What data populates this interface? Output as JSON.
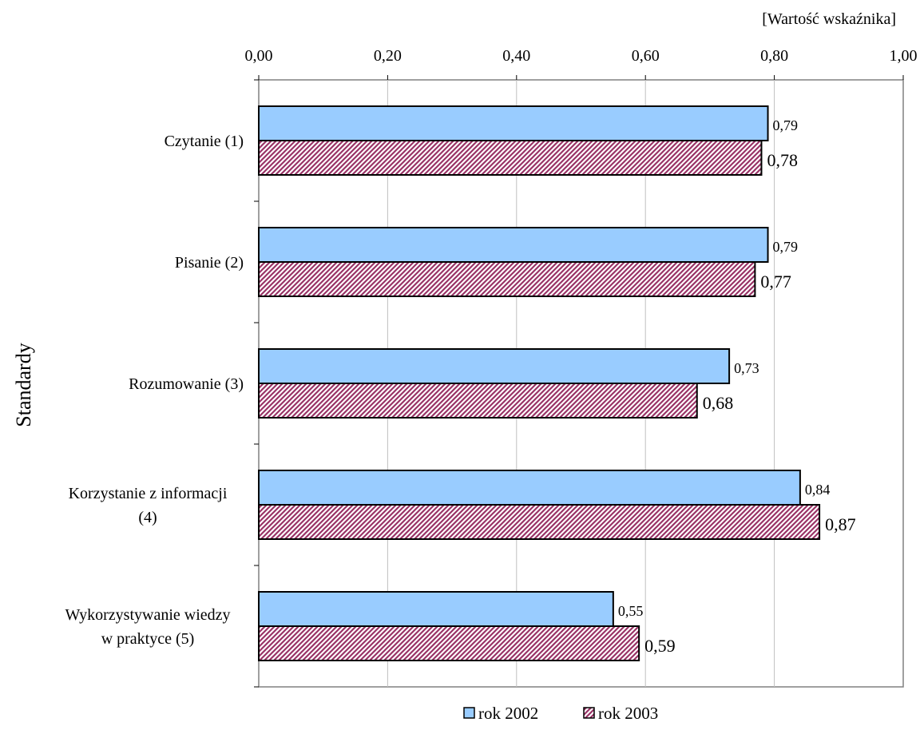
{
  "chart_data": {
    "type": "bar",
    "orientation": "horizontal",
    "axis_unit_label": "[Wartość wskaźnika]",
    "ylabel": "Standardy",
    "xlim": [
      0,
      1
    ],
    "x_ticks": [
      "0,00",
      "0,20",
      "0,40",
      "0,60",
      "0,80",
      "1,00"
    ],
    "x_tick_values": [
      0,
      0.2,
      0.4,
      0.6,
      0.8,
      1.0
    ],
    "x_axis_position": "top",
    "grid": true,
    "legend_position": "bottom",
    "categories": [
      [
        "Czytanie (1)"
      ],
      [
        "Pisanie (2)"
      ],
      [
        "Rozumowanie (3)"
      ],
      [
        "Korzystanie z informacji",
        "(4)"
      ],
      [
        "Wykorzystywanie wiedzy",
        "w praktyce (5)"
      ]
    ],
    "series": [
      {
        "name": "rok 2002",
        "values": [
          0.79,
          0.79,
          0.73,
          0.84,
          0.55
        ],
        "labels": [
          "0,79",
          "0,79",
          "0,73",
          "0,84",
          "0,55"
        ],
        "color": "#99ccff",
        "pattern": "solid"
      },
      {
        "name": "rok 2003",
        "values": [
          0.78,
          0.77,
          0.68,
          0.87,
          0.59
        ],
        "labels": [
          "0,78",
          "0,77",
          "0,68",
          "0,87",
          "0,59"
        ],
        "color": "#993366",
        "pattern": "diagonal-hatch"
      }
    ]
  }
}
